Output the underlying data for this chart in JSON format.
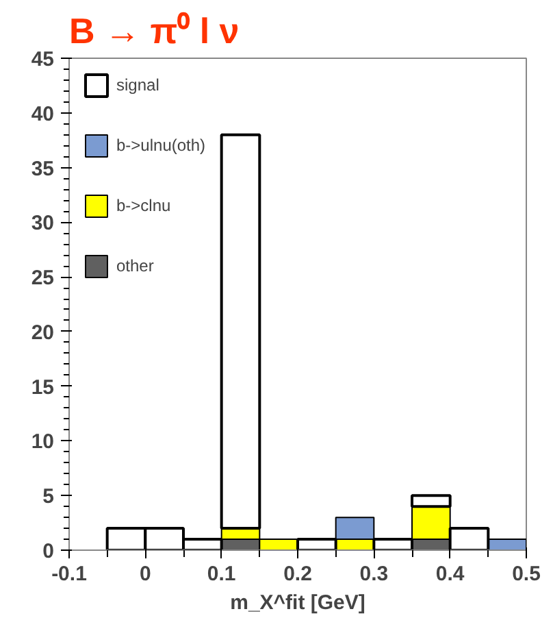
{
  "chart_data": {
    "type": "bar",
    "title": "B → π⁰ l ν",
    "xlabel": "m_X^fit [GeV]",
    "x": [
      -0.075,
      -0.025,
      0.025,
      0.075,
      0.125,
      0.175,
      0.225,
      0.275,
      0.325,
      0.375,
      0.425,
      0.475
    ],
    "stacked": true,
    "series": [
      {
        "name": "other",
        "color": "#606060",
        "values": [
          0,
          0,
          0,
          0,
          1,
          0,
          0,
          0,
          0,
          1,
          0,
          0
        ]
      },
      {
        "name": "b->clnu",
        "color": "#ffff00",
        "values": [
          0,
          0,
          0,
          0,
          1,
          1,
          0,
          1,
          0,
          3,
          0,
          0
        ]
      },
      {
        "name": "b->ulnu(oth)",
        "color": "#7b9bd1",
        "values": [
          0,
          0,
          0,
          0,
          0,
          0,
          0,
          2,
          0,
          0,
          0,
          1
        ]
      },
      {
        "name": "signal",
        "color": "#ffffff",
        "values": [
          0,
          2,
          2,
          1,
          36,
          0,
          1,
          0,
          1,
          1,
          2,
          0
        ]
      }
    ],
    "xlim": [
      -0.1,
      0.5
    ],
    "ylim": [
      0,
      45
    ],
    "xticks": [
      -0.1,
      0,
      0.1,
      0.2,
      0.3,
      0.4,
      0.5
    ],
    "yticks": [
      0,
      5,
      10,
      15,
      20,
      25,
      30,
      35,
      40,
      45
    ],
    "grid": false,
    "legend": "top left"
  }
}
